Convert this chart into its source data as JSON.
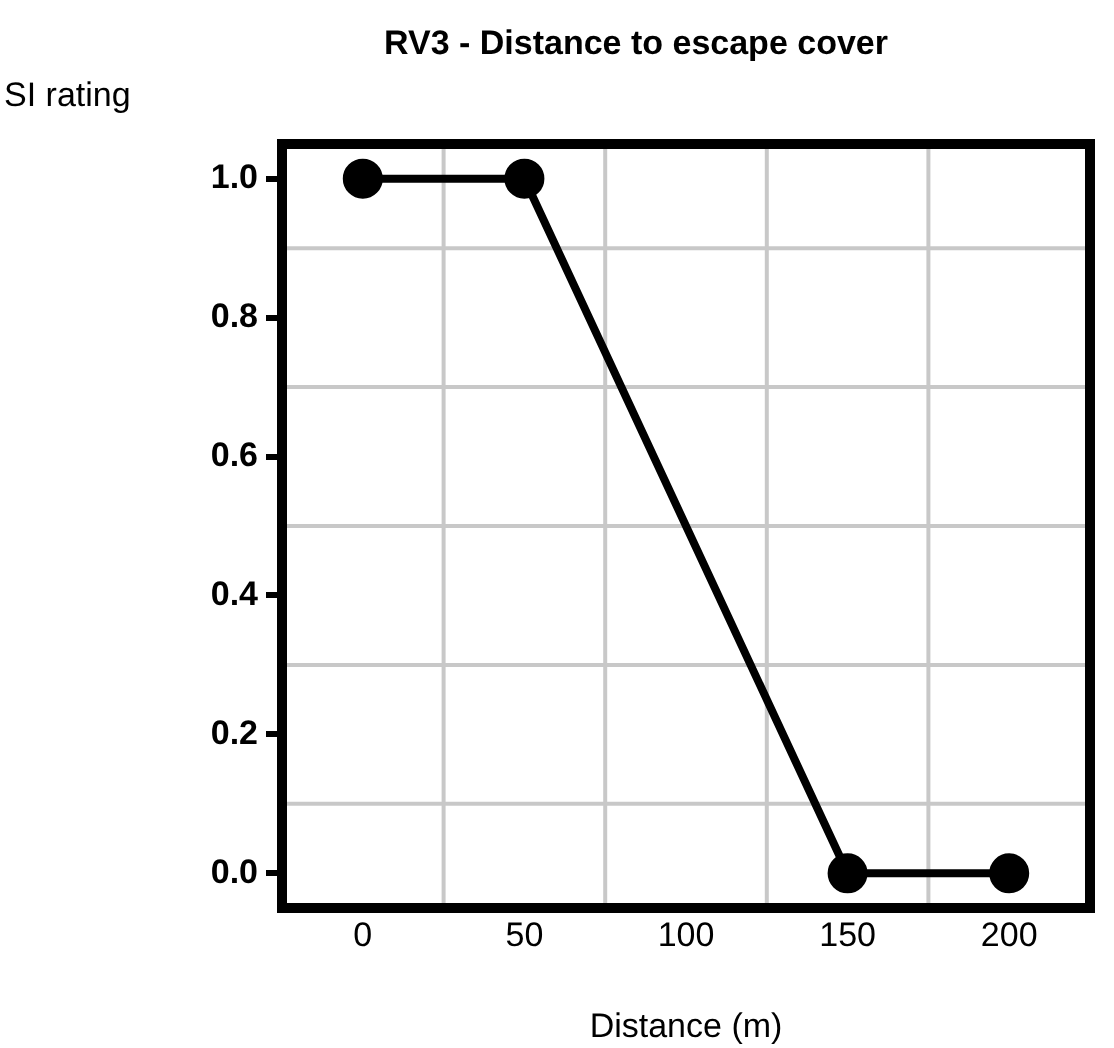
{
  "chart_data": {
    "type": "line",
    "title": "RV3 - Distance to escape cover",
    "xlabel": "Distance (m)",
    "ylabel": "SI rating",
    "x": [
      0,
      50,
      150,
      200
    ],
    "series": [
      {
        "color": "#000000",
        "values": [
          1.0,
          1.0,
          0.0,
          0.0
        ]
      }
    ],
    "xlim": [
      -25,
      225
    ],
    "xticks": [
      0,
      50,
      100,
      150,
      200
    ],
    "ylim": [
      -0.05,
      1.05
    ],
    "yticks": [
      {
        "value": 0,
        "label": "0.0"
      },
      {
        "value": 0.2,
        "label": "0.2"
      },
      {
        "value": 0.4,
        "label": "0.4"
      },
      {
        "value": 0.6,
        "label": "0.6"
      },
      {
        "value": 0.8,
        "label": "0.8"
      },
      {
        "value": 1,
        "label": "1.0"
      }
    ],
    "grid": true,
    "marker": "circle",
    "line_style": "solid",
    "legend": false
  }
}
